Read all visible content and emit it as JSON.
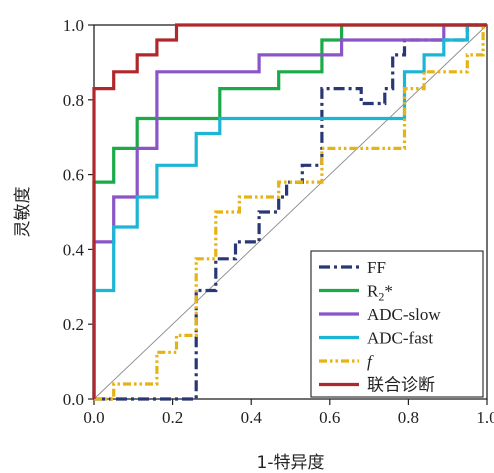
{
  "chart_data": {
    "type": "line",
    "xlabel": "1-特异度",
    "ylabel": "灵敏度",
    "xlim": [
      0,
      1.0
    ],
    "ylim": [
      0,
      1.0
    ],
    "x_ticks": [
      "0.0",
      "0.2",
      "0.4",
      "0.6",
      "0.8",
      "1.0"
    ],
    "y_ticks": [
      "0.0",
      "0.2",
      "0.4",
      "0.6",
      "0.8",
      "1.0"
    ],
    "grid": false,
    "reference_line": "diagonal",
    "legend_position": "bottom-right",
    "series": [
      {
        "name": "FF",
        "color": "#2a3775",
        "dash": "dash-dot",
        "points": [
          [
            0,
            0
          ],
          [
            0.26,
            0
          ],
          [
            0.26,
            0.29
          ],
          [
            0.31,
            0.29
          ],
          [
            0.31,
            0.375
          ],
          [
            0.36,
            0.375
          ],
          [
            0.36,
            0.42
          ],
          [
            0.42,
            0.42
          ],
          [
            0.42,
            0.5
          ],
          [
            0.47,
            0.5
          ],
          [
            0.47,
            0.54
          ],
          [
            0.49,
            0.54
          ],
          [
            0.49,
            0.58
          ],
          [
            0.53,
            0.58
          ],
          [
            0.53,
            0.625
          ],
          [
            0.58,
            0.625
          ],
          [
            0.58,
            0.83
          ],
          [
            0.68,
            0.83
          ],
          [
            0.68,
            0.79
          ],
          [
            0.74,
            0.79
          ],
          [
            0.74,
            0.83
          ],
          [
            0.76,
            0.83
          ],
          [
            0.76,
            0.92
          ],
          [
            0.79,
            0.92
          ],
          [
            0.79,
            0.96
          ],
          [
            0.95,
            0.96
          ],
          [
            0.95,
            1.0
          ],
          [
            1.0,
            1.0
          ]
        ]
      },
      {
        "name": "R2*",
        "color": "#1aaa48",
        "dash": "solid",
        "points": [
          [
            0,
            0
          ],
          [
            0,
            0.58
          ],
          [
            0.05,
            0.58
          ],
          [
            0.05,
            0.67
          ],
          [
            0.11,
            0.67
          ],
          [
            0.11,
            0.75
          ],
          [
            0.32,
            0.75
          ],
          [
            0.32,
            0.83
          ],
          [
            0.47,
            0.83
          ],
          [
            0.47,
            0.875
          ],
          [
            0.58,
            0.875
          ],
          [
            0.58,
            0.96
          ],
          [
            0.63,
            0.96
          ],
          [
            0.63,
            1.0
          ],
          [
            1.0,
            1.0
          ]
        ]
      },
      {
        "name": "ADC-slow",
        "color": "#8b55c8",
        "dash": "solid",
        "points": [
          [
            0,
            0
          ],
          [
            0,
            0.42
          ],
          [
            0.05,
            0.42
          ],
          [
            0.05,
            0.54
          ],
          [
            0.11,
            0.54
          ],
          [
            0.11,
            0.67
          ],
          [
            0.16,
            0.67
          ],
          [
            0.16,
            0.875
          ],
          [
            0.42,
            0.875
          ],
          [
            0.42,
            0.92
          ],
          [
            0.63,
            0.92
          ],
          [
            0.63,
            0.96
          ],
          [
            0.89,
            0.96
          ],
          [
            0.89,
            1.0
          ],
          [
            1.0,
            1.0
          ]
        ]
      },
      {
        "name": "ADC-fast",
        "color": "#1bb6d6",
        "dash": "solid",
        "points": [
          [
            0,
            0
          ],
          [
            0,
            0.29
          ],
          [
            0.05,
            0.29
          ],
          [
            0.05,
            0.46
          ],
          [
            0.11,
            0.46
          ],
          [
            0.11,
            0.54
          ],
          [
            0.16,
            0.54
          ],
          [
            0.16,
            0.625
          ],
          [
            0.26,
            0.625
          ],
          [
            0.26,
            0.71
          ],
          [
            0.32,
            0.71
          ],
          [
            0.32,
            0.75
          ],
          [
            0.79,
            0.75
          ],
          [
            0.79,
            0.875
          ],
          [
            0.84,
            0.875
          ],
          [
            0.84,
            0.92
          ],
          [
            0.89,
            0.92
          ],
          [
            0.89,
            0.96
          ],
          [
            0.95,
            0.96
          ],
          [
            0.95,
            1.0
          ],
          [
            1.0,
            1.0
          ]
        ]
      },
      {
        "name": "f",
        "color": "#e6b312",
        "dash": "dash-dot-dot",
        "points": [
          [
            0,
            0
          ],
          [
            0.05,
            0
          ],
          [
            0.05,
            0.04
          ],
          [
            0.16,
            0.04
          ],
          [
            0.16,
            0.125
          ],
          [
            0.21,
            0.125
          ],
          [
            0.21,
            0.17
          ],
          [
            0.26,
            0.17
          ],
          [
            0.26,
            0.375
          ],
          [
            0.31,
            0.375
          ],
          [
            0.31,
            0.5
          ],
          [
            0.37,
            0.5
          ],
          [
            0.37,
            0.54
          ],
          [
            0.47,
            0.54
          ],
          [
            0.47,
            0.58
          ],
          [
            0.58,
            0.58
          ],
          [
            0.58,
            0.67
          ],
          [
            0.79,
            0.67
          ],
          [
            0.79,
            0.83
          ],
          [
            0.84,
            0.83
          ],
          [
            0.84,
            0.875
          ],
          [
            0.95,
            0.875
          ],
          [
            0.95,
            0.92
          ],
          [
            0.99,
            0.92
          ],
          [
            0.99,
            1.0
          ],
          [
            1.0,
            1.0
          ]
        ]
      },
      {
        "name": "联合诊断",
        "color": "#b0282c",
        "dash": "solid",
        "points": [
          [
            0,
            0
          ],
          [
            0,
            0.83
          ],
          [
            0.05,
            0.83
          ],
          [
            0.05,
            0.875
          ],
          [
            0.11,
            0.875
          ],
          [
            0.11,
            0.92
          ],
          [
            0.16,
            0.92
          ],
          [
            0.16,
            0.96
          ],
          [
            0.21,
            0.96
          ],
          [
            0.21,
            1.0
          ],
          [
            1.0,
            1.0
          ]
        ]
      }
    ]
  }
}
